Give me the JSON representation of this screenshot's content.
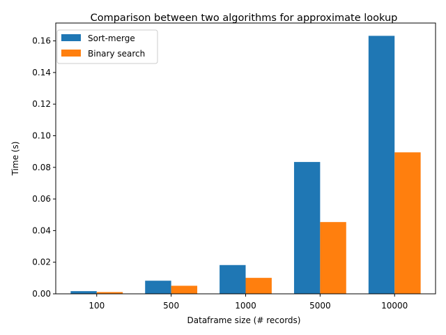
{
  "chart_data": {
    "type": "bar",
    "title": "Comparison between two algorithms for approximate lookup",
    "xlabel": "Dataframe size (# records)",
    "ylabel": "Time (s)",
    "categories": [
      "100",
      "500",
      "1000",
      "5000",
      "10000"
    ],
    "series": [
      {
        "name": "Sort-merge",
        "color": "#1f77b4",
        "values": [
          0.0017,
          0.0083,
          0.0182,
          0.0834,
          0.1632
        ]
      },
      {
        "name": "Binary search",
        "color": "#ff7f0e",
        "values": [
          0.0011,
          0.0051,
          0.0101,
          0.0454,
          0.0895
        ]
      }
    ],
    "ylim": [
      0,
      0.1713
    ],
    "yticks": [
      "0.00",
      "0.02",
      "0.04",
      "0.06",
      "0.08",
      "0.10",
      "0.12",
      "0.14",
      "0.16"
    ],
    "legend": "top-left",
    "grid": false
  }
}
